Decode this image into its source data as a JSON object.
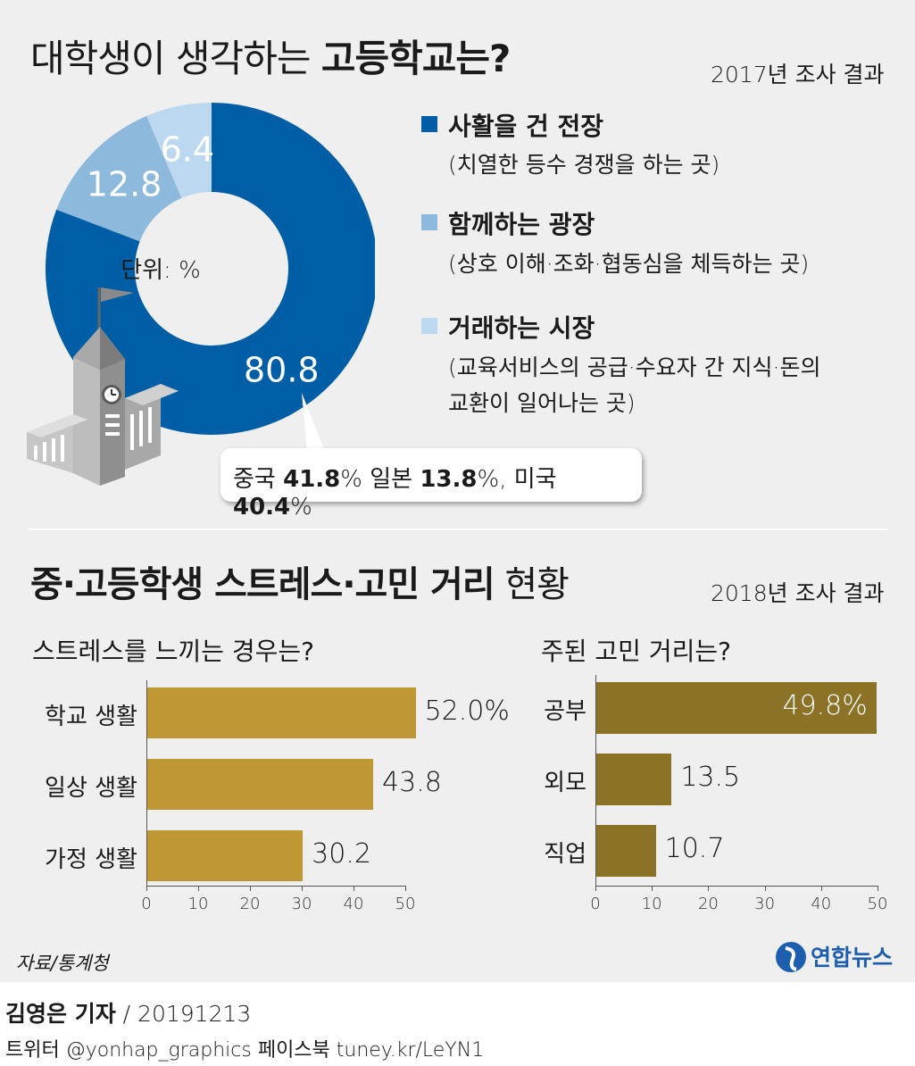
{
  "section1": {
    "title_prefix": "대학생이 생각하는 ",
    "title_bold": "고등학교는?",
    "year": "2017년 조사 결과",
    "unit": "단위: %",
    "callout": {
      "a_label": "중국 ",
      "a_value": "41.8",
      "a_unit": "% 일본 ",
      "b_value": "13.8",
      "b_unit": "%, 미국 ",
      "c_value": "40.4",
      "c_unit": "%"
    },
    "legend": [
      {
        "title": "사활을 건 전장",
        "desc": [
          "(치열한 등수 경쟁을 하는 곳)"
        ],
        "color": "#005ea6"
      },
      {
        "title": "함께하는 광장",
        "desc": [
          "(상호 이해·조화·협동심을 체득하는 곳)"
        ],
        "color": "#8db9dd"
      },
      {
        "title": "거래하는 시장",
        "desc": [
          "(교육서비스의 공급·수요자 간 지식·돈의",
          "교환이 일어나는 곳)"
        ],
        "color": "#bcd8ee"
      }
    ]
  },
  "section2": {
    "title_bold": "중·고등학생 스트레스·고민 거리",
    "title_light": " 현황",
    "year": "2018년 조사 결과",
    "left_subtitle": "스트레스를 느끼는 경우는?",
    "right_subtitle": "주된 고민 거리는?"
  },
  "chart_data": [
    {
      "type": "pie",
      "title": "대학생이 생각하는 고등학교는?",
      "unit": "%",
      "categories": [
        "사활을 건 전장",
        "함께하는 광장",
        "거래하는 시장"
      ],
      "values": [
        80.8,
        12.8,
        6.4
      ],
      "labels": [
        "80.8",
        "12.8",
        "6.4"
      ],
      "colors": [
        "#005ea6",
        "#8db9dd",
        "#bcd8ee"
      ]
    },
    {
      "type": "bar",
      "orientation": "horizontal",
      "title": "스트레스를 느끼는 경우는?",
      "categories": [
        "학교 생활",
        "일상 생활",
        "가정 생활"
      ],
      "values": [
        52.0,
        43.8,
        30.2
      ],
      "labels": [
        "52.0%",
        "43.8",
        "30.2"
      ],
      "xlim": [
        0,
        50
      ],
      "ticks": [
        "0",
        "10",
        "20",
        "30",
        "40",
        "50"
      ],
      "color": "#c09833"
    },
    {
      "type": "bar",
      "orientation": "horizontal",
      "title": "주된 고민 거리는?",
      "categories": [
        "공부",
        "외모",
        "직업"
      ],
      "values": [
        49.8,
        13.5,
        10.7
      ],
      "labels": [
        "49.8%",
        "13.5",
        "10.7"
      ],
      "xlim": [
        0,
        50
      ],
      "ticks": [
        "0",
        "10",
        "20",
        "30",
        "40",
        "50"
      ],
      "color": "#8c7226"
    }
  ],
  "footer": {
    "source": "자료/통계청",
    "brand": "연합뉴스",
    "reporter": "김영은 기자",
    "date": " / 20191213",
    "social": "트위터 @yonhap_graphics  페이스북 tuney.kr/LeYN1"
  }
}
